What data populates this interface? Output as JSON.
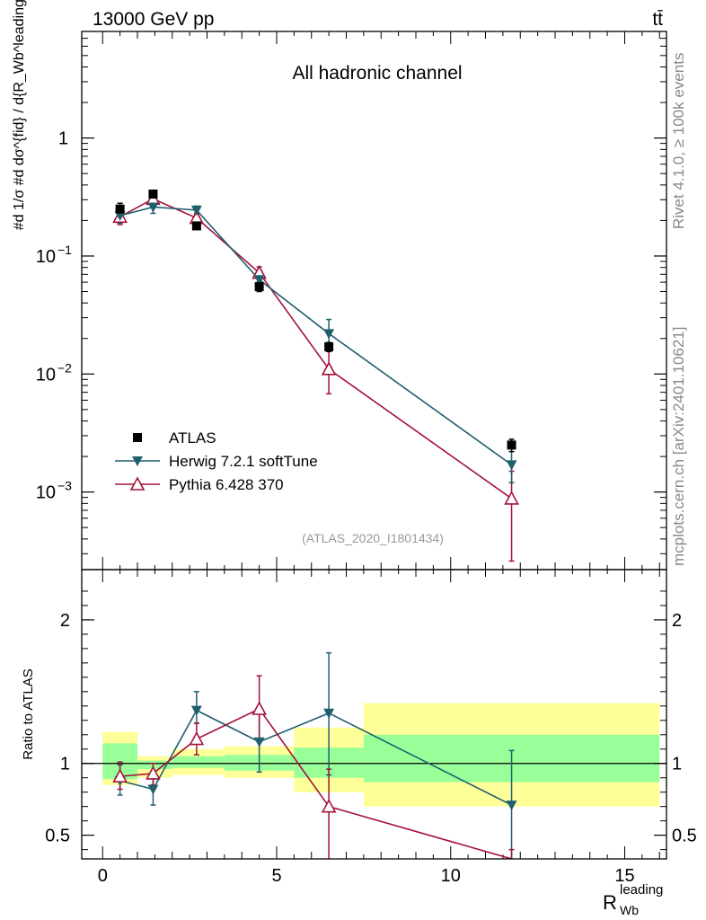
{
  "header": {
    "energy": "13000 GeV pp",
    "process": "tt̄"
  },
  "side_labels": {
    "rivet": "Rivet 4.1.0, ≥ 100k events",
    "mcplots": "mcplots.cern.ch [arXiv:2401.10621]"
  },
  "chart_data": [
    {
      "type": "line",
      "panel": "main",
      "title": "All hadronic channel",
      "analysis": "(ATLAS_2020_I1801434)",
      "ylabel": "#d 1/σ #d dσ^{fid} / d{R_Wb^leading}",
      "yscale": "log",
      "ylim": [
        0.00022,
        8
      ],
      "xlim": [
        -0.6,
        16.2
      ],
      "yticks": [
        {
          "value": 0.001,
          "base": "10",
          "exp": "−3"
        },
        {
          "value": 0.01,
          "base": "10",
          "exp": "−2"
        },
        {
          "value": 0.1,
          "base": "10",
          "exp": "−1"
        },
        {
          "value": 1,
          "base": "1",
          "exp": ""
        }
      ],
      "legend": {
        "position": "bottom-left",
        "entries": [
          "ATLAS",
          "Herwig 7.2.1 softTune",
          "Pythia 6.428 370"
        ]
      },
      "series": [
        {
          "name": "ATLAS",
          "color": "#000000",
          "marker": "square",
          "x": [
            0.5,
            1.45,
            2.7,
            4.5,
            6.5,
            11.75
          ],
          "y": [
            0.25,
            0.335,
            0.18,
            0.055,
            0.017,
            0.0025
          ],
          "yerr_lo": [
            0.22,
            0.31,
            0.17,
            0.05,
            0.0155,
            0.0022
          ],
          "yerr_hi": [
            0.28,
            0.36,
            0.19,
            0.06,
            0.0185,
            0.0028
          ]
        },
        {
          "name": "Herwig 7.2.1 softTune",
          "color": "#1f5f6e",
          "marker": "triangle-down",
          "x": [
            0.5,
            1.45,
            2.7,
            4.5,
            6.5,
            11.75
          ],
          "y": [
            0.22,
            0.26,
            0.245,
            0.063,
            0.022,
            0.0017
          ],
          "yerr_lo": [
            0.19,
            0.23,
            0.225,
            0.056,
            0.016,
            0.0012
          ],
          "yerr_hi": [
            0.25,
            0.29,
            0.265,
            0.07,
            0.029,
            0.0024
          ]
        },
        {
          "name": "Pythia 6.428 370",
          "color": "#a3123a",
          "marker": "triangle-open",
          "x": [
            0.5,
            1.45,
            2.7,
            4.5,
            6.5,
            11.75
          ],
          "y": [
            0.215,
            0.305,
            0.21,
            0.072,
            0.011,
            0.00088
          ],
          "yerr_lo": [
            0.185,
            0.275,
            0.19,
            0.063,
            0.0068,
            0.00026
          ],
          "yerr_hi": [
            0.245,
            0.335,
            0.23,
            0.081,
            0.0155,
            0.0015
          ]
        }
      ]
    },
    {
      "type": "line",
      "panel": "ratio",
      "ylabel": "Ratio to ATLAS",
      "xlabel": "R",
      "xlabel_sup": "leading",
      "xlabel_sub": "Wb",
      "yscale": "linear",
      "ylim": [
        0.335,
        2.35
      ],
      "xlim": [
        -0.6,
        16.2
      ],
      "xticks": [
        0,
        5,
        10,
        15
      ],
      "yticks": [
        0.5,
        1,
        2
      ],
      "reference": 1,
      "bands": [
        {
          "x0": 0,
          "x1": 1,
          "inner": [
            0.89,
            1.14
          ],
          "outer": [
            0.85,
            1.22
          ]
        },
        {
          "x0": 1,
          "x1": 2,
          "inner": [
            0.96,
            1.02
          ],
          "outer": [
            0.9,
            1.05
          ]
        },
        {
          "x0": 2,
          "x1": 3.5,
          "inner": [
            0.97,
            1.05
          ],
          "outer": [
            0.92,
            1.1
          ]
        },
        {
          "x0": 3.5,
          "x1": 5.5,
          "inner": [
            0.95,
            1.06
          ],
          "outer": [
            0.9,
            1.12
          ]
        },
        {
          "x0": 5.5,
          "x1": 7.5,
          "inner": [
            0.9,
            1.11
          ],
          "outer": [
            0.8,
            1.25
          ]
        },
        {
          "x0": 7.5,
          "x1": 16,
          "inner": [
            0.87,
            1.2
          ],
          "outer": [
            0.7,
            1.42
          ]
        }
      ],
      "series": [
        {
          "name": "Herwig 7.2.1 softTune",
          "color": "#1f5f6e",
          "marker": "triangle-down",
          "x": [
            0.5,
            1.45,
            2.7,
            4.5,
            6.5,
            11.75
          ],
          "y": [
            0.88,
            0.82,
            1.37,
            1.15,
            1.35,
            0.71
          ],
          "yerr_lo": [
            0.78,
            0.71,
            1.28,
            0.94,
            0.92,
            0.3
          ],
          "yerr_hi": [
            0.99,
            0.95,
            1.5,
            1.35,
            1.77,
            1.09
          ]
        },
        {
          "name": "Pythia 6.428 370",
          "color": "#a3123a",
          "marker": "triangle-open",
          "x": [
            0.5,
            1.45,
            2.7,
            4.5,
            6.5,
            11.75
          ],
          "y": [
            0.91,
            0.93,
            1.17,
            1.38,
            0.7,
            0.335
          ],
          "yerr_lo": [
            0.82,
            0.85,
            1.06,
            1.17,
            0.3,
            0.3
          ],
          "yerr_hi": [
            1.01,
            1.0,
            1.28,
            1.61,
            0.96,
            0.4
          ]
        }
      ]
    }
  ]
}
